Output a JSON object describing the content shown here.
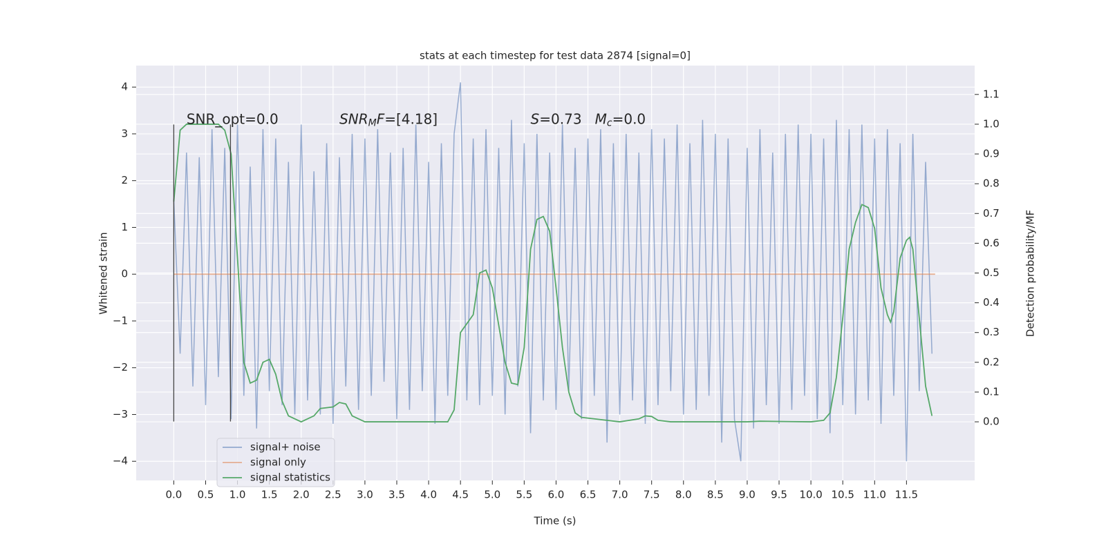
{
  "chart_data": {
    "type": "line",
    "title": "stats at each timestep for test data 2874 [signal=0]",
    "x_label": "Time (s)",
    "y_label": "Whitened strain",
    "y2_label": "Detection probability/MF",
    "xlim": [
      -0.59,
      12.57
    ],
    "ylim": [
      -4.41,
      4.46
    ],
    "y2lim": [
      -0.197,
      1.197
    ],
    "grid": true,
    "legend": "lower left",
    "xticks": [
      {
        "value": 0,
        "label": "0.0"
      },
      {
        "value": 0.5,
        "label": "0.5"
      },
      {
        "value": 1,
        "label": "1.0"
      },
      {
        "value": 1.5,
        "label": "1.5"
      },
      {
        "value": 2,
        "label": "2.0"
      },
      {
        "value": 2.5,
        "label": "2.5"
      },
      {
        "value": 3,
        "label": "3.0"
      },
      {
        "value": 3.5,
        "label": "3.5"
      },
      {
        "value": 4,
        "label": "4.0"
      },
      {
        "value": 4.5,
        "label": "4.5"
      },
      {
        "value": 5,
        "label": "5.0"
      },
      {
        "value": 5.5,
        "label": "5.5"
      },
      {
        "value": 6,
        "label": "6.0"
      },
      {
        "value": 6.5,
        "label": "6.5"
      },
      {
        "value": 7,
        "label": "7.0"
      },
      {
        "value": 7.5,
        "label": "7.5"
      },
      {
        "value": 8,
        "label": "8.0"
      },
      {
        "value": 8.5,
        "label": "8.5"
      },
      {
        "value": 9,
        "label": "9.0"
      },
      {
        "value": 9.5,
        "label": "9.5"
      },
      {
        "value": 10,
        "label": "10.0"
      },
      {
        "value": 10.5,
        "label": "10.5"
      },
      {
        "value": 11,
        "label": "11.0"
      },
      {
        "value": 11.5,
        "label": "11.5"
      }
    ],
    "yticks": [
      {
        "value": -4,
        "label": "−4"
      },
      {
        "value": -3,
        "label": "−3"
      },
      {
        "value": -2,
        "label": "−2"
      },
      {
        "value": -1,
        "label": "−1"
      },
      0,
      1,
      2,
      3,
      4
    ],
    "y2ticks": [
      {
        "value": 0,
        "label": "0.0"
      },
      {
        "value": 0.1,
        "label": "0.1"
      },
      {
        "value": 0.2,
        "label": "0.2"
      },
      {
        "value": 0.3,
        "label": "0.3"
      },
      {
        "value": 0.4,
        "label": "0.4"
      },
      {
        "value": 0.5,
        "label": "0.5"
      },
      {
        "value": 0.6,
        "label": "0.6"
      },
      {
        "value": 0.7,
        "label": "0.7"
      },
      {
        "value": 0.8,
        "label": "0.8"
      },
      {
        "value": 0.9,
        "label": "0.9"
      },
      {
        "value": 1,
        "label": "1.0"
      },
      {
        "value": 1.1,
        "label": "1.1"
      }
    ],
    "series": [
      {
        "name": "signal+ noise",
        "color": "#4c72b0",
        "x": [
          0,
          0.1,
          0.2,
          0.3,
          0.4,
          0.5,
          0.6,
          0.7,
          0.8,
          0.9,
          1,
          1.1,
          1.2,
          1.3,
          1.4,
          1.5,
          1.6,
          1.7,
          1.8,
          1.9,
          2,
          2.1,
          2.2,
          2.3,
          2.4,
          2.5,
          2.6,
          2.7,
          2.8,
          2.9,
          3,
          3.1,
          3.2,
          3.3,
          3.4,
          3.5,
          3.6,
          3.7,
          3.8,
          3.9,
          4,
          4.1,
          4.2,
          4.3,
          4.4,
          4.5,
          4.6,
          4.7,
          4.8,
          4.9,
          5,
          5.1,
          5.2,
          5.3,
          5.4,
          5.5,
          5.6,
          5.7,
          5.8,
          5.9,
          6,
          6.1,
          6.2,
          6.3,
          6.4,
          6.5,
          6.6,
          6.7,
          6.8,
          6.9,
          7,
          7.1,
          7.2,
          7.3,
          7.4,
          7.5,
          7.6,
          7.7,
          7.8,
          7.9,
          8,
          8.1,
          8.2,
          8.3,
          8.4,
          8.5,
          8.6,
          8.7,
          8.8,
          8.9,
          9,
          9.1,
          9.2,
          9.3,
          9.4,
          9.5,
          9.6,
          9.7,
          9.8,
          9.9,
          10,
          10.1,
          10.2,
          10.3,
          10.4,
          10.5,
          10.6,
          10.7,
          10.8,
          10.9,
          11,
          11.1,
          11.2,
          11.3,
          11.4,
          11.5,
          11.6,
          11.7,
          11.8,
          11.9
        ],
        "values": [
          1.6,
          -1.7,
          2.6,
          -2.4,
          2.5,
          -2.8,
          3.1,
          -2.2,
          2.7,
          -3.1,
          3.2,
          -2.6,
          2.3,
          -3.3,
          3.1,
          -2.5,
          2.9,
          -2.8,
          2.4,
          -3.0,
          3.2,
          -2.7,
          2.2,
          -3.0,
          2.8,
          -3.2,
          2.5,
          -2.4,
          3.0,
          -2.9,
          2.9,
          -2.6,
          3.1,
          -2.3,
          2.6,
          -3.1,
          2.7,
          -2.9,
          3.2,
          -2.5,
          2.4,
          -3.2,
          2.8,
          -2.6,
          3.0,
          4.1,
          -2.7,
          2.9,
          -2.8,
          3.1,
          -2.6,
          2.7,
          -3.0,
          3.3,
          -2.4,
          2.8,
          -3.4,
          3.0,
          -2.7,
          2.6,
          -2.9,
          3.2,
          -2.5,
          2.7,
          -3.1,
          2.9,
          -2.6,
          3.1,
          -3.6,
          2.8,
          -3.0,
          3.0,
          -2.7,
          2.6,
          -3.2,
          3.1,
          -2.8,
          2.9,
          -2.5,
          3.2,
          -3.0,
          2.8,
          -2.9,
          3.3,
          -2.6,
          3.0,
          -3.6,
          2.9,
          -3.1,
          -4.0,
          2.7,
          -3.3,
          3.1,
          -2.8,
          2.6,
          -3.2,
          3.0,
          -2.9,
          3.2,
          -2.6,
          3.0,
          -3.1,
          2.9,
          -3.4,
          3.3,
          -2.8,
          3.1,
          -3.0,
          3.2,
          -2.7,
          2.9,
          -3.2,
          3.1,
          -2.6,
          2.8,
          -4.0,
          3.0,
          -2.5,
          2.4,
          -1.7
        ]
      },
      {
        "name": "signal only",
        "color": "#dd8452",
        "x": [
          0,
          11.95
        ],
        "values": [
          0,
          0
        ]
      },
      {
        "name": "signal statistics",
        "color": "#55a868",
        "axis": "y2",
        "x": [
          0,
          0.1,
          0.2,
          0.4,
          0.6,
          0.7,
          0.8,
          0.9,
          1,
          1.1,
          1.2,
          1.3,
          1.4,
          1.5,
          1.6,
          1.7,
          1.8,
          2,
          2.2,
          2.3,
          2.5,
          2.6,
          2.7,
          2.8,
          3,
          4.3,
          4.4,
          4.5,
          4.7,
          4.8,
          4.9,
          5,
          5.2,
          5.3,
          5.4,
          5.5,
          5.6,
          5.7,
          5.8,
          5.9,
          6,
          6.1,
          6.2,
          6.3,
          6.4,
          6.6,
          7,
          7.3,
          7.4,
          7.5,
          7.6,
          7.8,
          9,
          9.2,
          10,
          10.2,
          10.3,
          10.4,
          10.5,
          10.6,
          10.7,
          10.8,
          10.9,
          11,
          11.1,
          11.2,
          11.25,
          11.3,
          11.4,
          11.5,
          11.55,
          11.6,
          11.7,
          11.8,
          11.9
        ],
        "values": [
          0.74,
          0.98,
          1.0,
          1.0,
          1.0,
          1.0,
          0.98,
          0.9,
          0.55,
          0.2,
          0.13,
          0.14,
          0.2,
          0.21,
          0.16,
          0.07,
          0.02,
          0.0,
          0.02,
          0.045,
          0.05,
          0.065,
          0.06,
          0.02,
          0.0,
          0.0,
          0.04,
          0.3,
          0.36,
          0.5,
          0.51,
          0.45,
          0.2,
          0.13,
          0.125,
          0.25,
          0.58,
          0.68,
          0.69,
          0.64,
          0.45,
          0.25,
          0.1,
          0.03,
          0.015,
          0.01,
          0.0,
          0.01,
          0.02,
          0.018,
          0.005,
          0.0,
          0.0,
          0.002,
          0.0,
          0.005,
          0.03,
          0.15,
          0.35,
          0.58,
          0.67,
          0.73,
          0.72,
          0.65,
          0.45,
          0.36,
          0.335,
          0.37,
          0.55,
          0.61,
          0.62,
          0.58,
          0.35,
          0.12,
          0.02
        ]
      }
    ],
    "vlines": [
      {
        "x": 0,
        "y": [
          -3.15,
          3.2
        ]
      },
      {
        "x": 0.89,
        "y": [
          -3.15,
          3.2
        ]
      }
    ],
    "annotations": [
      {
        "x": 0.2,
        "y": 3.3,
        "parts": [
          {
            "text": "SNR_opt=0.0"
          }
        ]
      },
      {
        "x": 2.6,
        "y": 3.3,
        "parts": [
          {
            "text": "SNR",
            "italic": true
          },
          {
            "text": "M",
            "italic": true,
            "sub": true
          },
          {
            "text": "F",
            "italic": true
          },
          {
            "text": "=[4.18]"
          }
        ]
      },
      {
        "x": 5.6,
        "y": 3.3,
        "parts": [
          {
            "text": "S",
            "italic": true
          },
          {
            "text": "=0.73   "
          },
          {
            "text": "M",
            "italic": true
          },
          {
            "text": "c",
            "italic": true,
            "sub": true
          },
          {
            "text": "=0.0"
          }
        ]
      }
    ]
  }
}
